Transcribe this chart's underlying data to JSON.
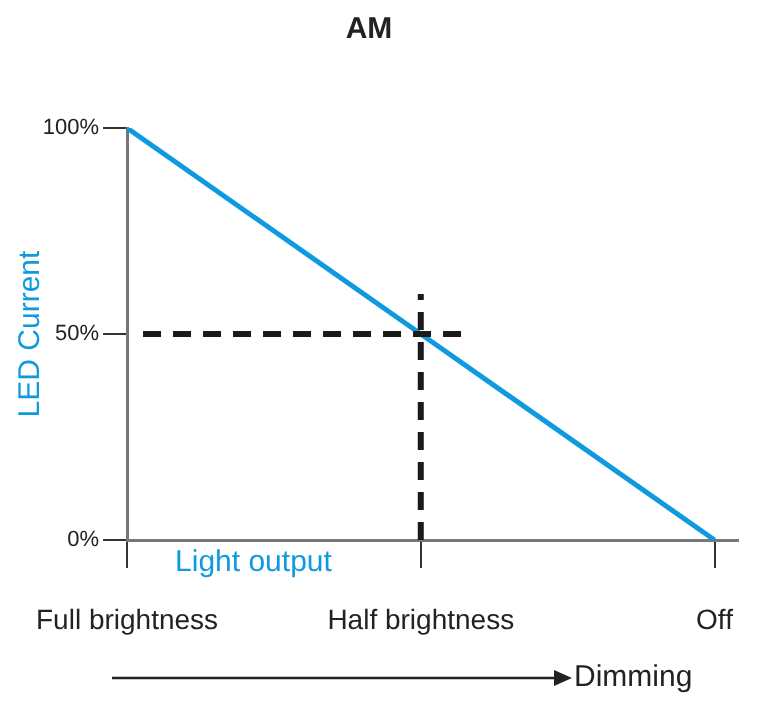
{
  "chart_data": {
    "type": "line",
    "title": "AM",
    "xlabel": "Light output",
    "ylabel": "LED Current",
    "categories": [
      "Full brightness",
      "Half brightness",
      "Off"
    ],
    "series": [
      {
        "color": "#0f9ae0",
        "values": [
          100,
          50,
          0
        ]
      }
    ],
    "ylim": [
      0,
      100
    ],
    "yticks": [
      {
        "value": 0,
        "label": "0%"
      },
      {
        "value": 50,
        "label": "50%"
      },
      {
        "value": 100,
        "label": "100%"
      }
    ],
    "ref_lines": [
      {
        "axis": "y",
        "value": 50,
        "label": null,
        "color": "#1a1a1a",
        "line_style": "dashed"
      },
      {
        "axis": "x",
        "value": "Half brightness",
        "label": null,
        "color": "#1a1a1a",
        "line_style": "dashed"
      }
    ],
    "annotations": [
      "Dimming"
    ],
    "grid": false,
    "legend": false,
    "marker": "none",
    "line_style": "solid"
  }
}
